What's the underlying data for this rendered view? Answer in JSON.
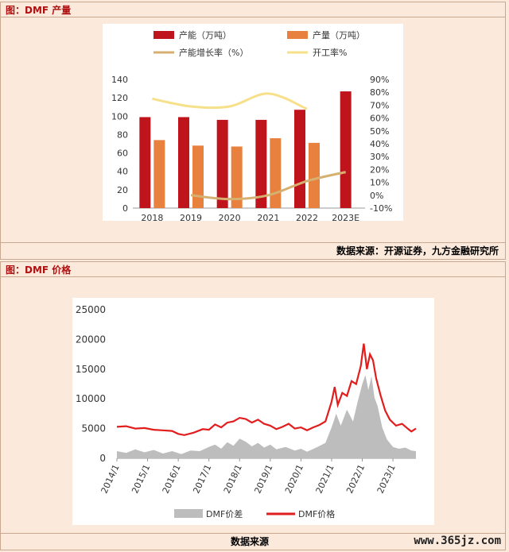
{
  "section1": {
    "title": "图：DMF 产量",
    "source": "数据来源：开源证券，九方金融研究所"
  },
  "section2": {
    "title": "图：DMF 价格",
    "source": "数据来源"
  },
  "watermark": "www.365jz.com",
  "chart_data": [
    {
      "type": "bar",
      "categories": [
        "2018",
        "2019",
        "2020",
        "2021",
        "2022",
        "2023E"
      ],
      "series": [
        {
          "name": "产能（万吨）",
          "kind": "bar",
          "axis": "left",
          "color": "#c0141c",
          "values": [
            99,
            99,
            96,
            96,
            107,
            127
          ]
        },
        {
          "name": "产量（万吨）",
          "kind": "bar",
          "axis": "left",
          "color": "#e8803e",
          "values": [
            74,
            68,
            67,
            76,
            71,
            null
          ]
        },
        {
          "name": "产能增长率（%）",
          "kind": "line",
          "axis": "right",
          "color": "#d6b070",
          "values": [
            null,
            0,
            -3,
            0,
            11,
            18
          ]
        },
        {
          "name": "开工率%",
          "kind": "line",
          "axis": "right",
          "color": "#f7e08a",
          "values": [
            75,
            69,
            69,
            79,
            67,
            null
          ]
        }
      ],
      "ylim_left": [
        0,
        140
      ],
      "yticks_left": [
        0,
        20,
        40,
        60,
        80,
        100,
        120,
        140
      ],
      "ylim_right": [
        -10,
        90
      ],
      "yticks_right": [
        "-10%",
        "0%",
        "10%",
        "20%",
        "30%",
        "40%",
        "50%",
        "60%",
        "70%",
        "80%",
        "90%"
      ],
      "legend": "top"
    },
    {
      "type": "line",
      "x_labels": [
        "2014/1",
        "2015/1",
        "2016/1",
        "2017/1",
        "2018/1",
        "2019/1",
        "2020/1",
        "2021/1",
        "2022/1",
        "2023/1"
      ],
      "x_start": 2014.0,
      "x_end": 2023.75,
      "ylim": [
        0,
        25000
      ],
      "yticks": [
        0,
        5000,
        10000,
        15000,
        20000,
        25000
      ],
      "legend": "bottom",
      "series": [
        {
          "name": "DMF价差",
          "kind": "area",
          "color": "#bdbdbd",
          "points": [
            [
              2014.0,
              1200
            ],
            [
              2014.3,
              900
            ],
            [
              2014.6,
              1500
            ],
            [
              2014.9,
              1000
            ],
            [
              2015.2,
              1400
            ],
            [
              2015.5,
              800
            ],
            [
              2015.8,
              1200
            ],
            [
              2016.1,
              700
            ],
            [
              2016.4,
              1300
            ],
            [
              2016.7,
              1200
            ],
            [
              2017.0,
              1900
            ],
            [
              2017.2,
              2300
            ],
            [
              2017.4,
              1600
            ],
            [
              2017.6,
              2700
            ],
            [
              2017.8,
              2100
            ],
            [
              2018.0,
              3300
            ],
            [
              2018.2,
              2800
            ],
            [
              2018.4,
              2000
            ],
            [
              2018.6,
              2600
            ],
            [
              2018.8,
              1800
            ],
            [
              2019.0,
              2300
            ],
            [
              2019.2,
              1500
            ],
            [
              2019.5,
              1900
            ],
            [
              2019.8,
              1300
            ],
            [
              2020.0,
              1600
            ],
            [
              2020.2,
              1100
            ],
            [
              2020.5,
              1800
            ],
            [
              2020.8,
              2600
            ],
            [
              2021.0,
              5200
            ],
            [
              2021.15,
              7500
            ],
            [
              2021.3,
              5500
            ],
            [
              2021.5,
              8200
            ],
            [
              2021.7,
              6200
            ],
            [
              2021.85,
              9500
            ],
            [
              2022.0,
              12500
            ],
            [
              2022.1,
              14000
            ],
            [
              2022.2,
              11500
            ],
            [
              2022.3,
              13800
            ],
            [
              2022.4,
              10200
            ],
            [
              2022.5,
              8800
            ],
            [
              2022.65,
              5200
            ],
            [
              2022.8,
              3200
            ],
            [
              2023.0,
              1900
            ],
            [
              2023.2,
              1600
            ],
            [
              2023.4,
              1800
            ],
            [
              2023.6,
              1300
            ],
            [
              2023.75,
              1200
            ]
          ]
        },
        {
          "name": "DMF价格",
          "kind": "line",
          "color": "#e11d1d",
          "points": [
            [
              2014.0,
              5300
            ],
            [
              2014.3,
              5400
            ],
            [
              2014.6,
              5000
            ],
            [
              2014.9,
              5100
            ],
            [
              2015.2,
              4800
            ],
            [
              2015.5,
              4700
            ],
            [
              2015.8,
              4600
            ],
            [
              2016.0,
              4100
            ],
            [
              2016.2,
              3900
            ],
            [
              2016.5,
              4300
            ],
            [
              2016.8,
              4900
            ],
            [
              2017.0,
              4800
            ],
            [
              2017.2,
              5700
            ],
            [
              2017.4,
              5200
            ],
            [
              2017.6,
              6000
            ],
            [
              2017.8,
              6200
            ],
            [
              2018.0,
              6800
            ],
            [
              2018.2,
              6600
            ],
            [
              2018.4,
              6000
            ],
            [
              2018.6,
              6500
            ],
            [
              2018.8,
              5800
            ],
            [
              2019.0,
              5500
            ],
            [
              2019.2,
              4900
            ],
            [
              2019.4,
              5300
            ],
            [
              2019.6,
              5800
            ],
            [
              2019.8,
              5000
            ],
            [
              2020.0,
              5200
            ],
            [
              2020.2,
              4700
            ],
            [
              2020.4,
              5200
            ],
            [
              2020.6,
              5600
            ],
            [
              2020.8,
              6200
            ],
            [
              2021.0,
              9500
            ],
            [
              2021.1,
              12000
            ],
            [
              2021.2,
              9000
            ],
            [
              2021.35,
              11000
            ],
            [
              2021.5,
              10500
            ],
            [
              2021.65,
              13000
            ],
            [
              2021.8,
              12500
            ],
            [
              2021.95,
              15500
            ],
            [
              2022.05,
              19300
            ],
            [
              2022.15,
              15000
            ],
            [
              2022.25,
              17500
            ],
            [
              2022.35,
              16500
            ],
            [
              2022.45,
              13500
            ],
            [
              2022.6,
              10500
            ],
            [
              2022.75,
              8000
            ],
            [
              2022.9,
              6500
            ],
            [
              2023.1,
              5500
            ],
            [
              2023.3,
              5800
            ],
            [
              2023.5,
              4900
            ],
            [
              2023.6,
              4500
            ],
            [
              2023.75,
              5000
            ]
          ]
        }
      ]
    }
  ]
}
